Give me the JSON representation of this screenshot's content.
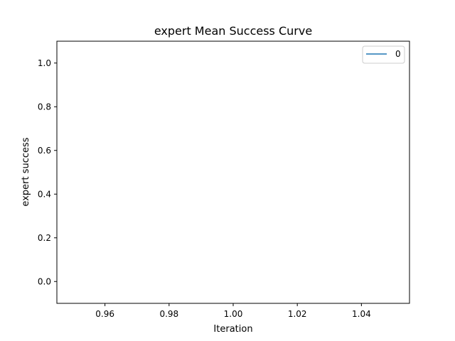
{
  "chart_data": {
    "type": "line",
    "title": "expert Mean Success Curve",
    "xlabel": "Iteration",
    "ylabel": "expert success",
    "xlim": [
      0.945,
      1.055
    ],
    "ylim": [
      -0.1,
      1.1
    ],
    "x_ticks": [
      0.96,
      0.98,
      1.0,
      1.02,
      1.04
    ],
    "x_tick_labels": [
      "0.96",
      "0.98",
      "1.00",
      "1.02",
      "1.04"
    ],
    "y_ticks": [
      0.0,
      0.2,
      0.4,
      0.6,
      0.8,
      1.0
    ],
    "y_tick_labels": [
      "0.0",
      "0.2",
      "0.4",
      "0.6",
      "0.8",
      "1.0"
    ],
    "grid": false,
    "legend_position": "top-right",
    "series": [
      {
        "name": "0",
        "color": "#1f77b4",
        "x": [
          1.0
        ],
        "y": [
          null
        ]
      }
    ]
  }
}
